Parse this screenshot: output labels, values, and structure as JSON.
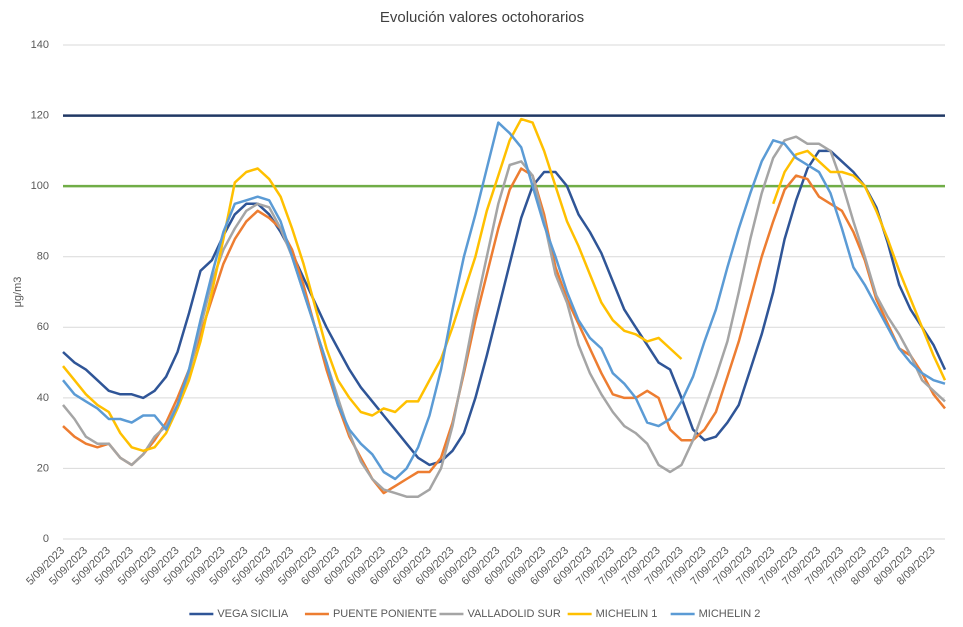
{
  "chart_data": {
    "type": "line",
    "title": "Evolución valores octohorarios",
    "y_label": "μg/m3",
    "categories": [
      "5/09/2023",
      null,
      "5/09/2023",
      null,
      "5/09/2023",
      null,
      "5/09/2023",
      null,
      "5/09/2023",
      null,
      "5/09/2023",
      null,
      "5/09/2023",
      null,
      "5/09/2023",
      null,
      "5/09/2023",
      null,
      "5/09/2023",
      null,
      "5/09/2023",
      null,
      "5/09/2023",
      null,
      "6/09/2023",
      null,
      "6/09/2023",
      null,
      "6/09/2023",
      null,
      "6/09/2023",
      null,
      "6/09/2023",
      null,
      "6/09/2023",
      null,
      "6/09/2023",
      null,
      "6/09/2023",
      null,
      "6/09/2023",
      null,
      "6/09/2023",
      null,
      "6/09/2023",
      null,
      "6/09/2023",
      null,
      "7/09/2023",
      null,
      "7/09/2023",
      null,
      "7/09/2023",
      null,
      "7/09/2023",
      null,
      "7/09/2023",
      null,
      "7/09/2023",
      null,
      "7/09/2023",
      null,
      "7/09/2023",
      null,
      "7/09/2023",
      null,
      "7/09/2023",
      null,
      "7/09/2023",
      null,
      "7/09/2023",
      null,
      "8/09/2023",
      null,
      "8/09/2023",
      null,
      "8/09/2023",
      null
    ],
    "series": [
      {
        "name": "VEGA SICILIA",
        "color": "#2f5597",
        "values": [
          53,
          50,
          48,
          45,
          42,
          41,
          41,
          40,
          42,
          46,
          53,
          64,
          76,
          79,
          86,
          92,
          95,
          95,
          92,
          87,
          81,
          74,
          67,
          60,
          54,
          48,
          43,
          39,
          35,
          31,
          27,
          23,
          21,
          22,
          25,
          30,
          40,
          52,
          65,
          78,
          91,
          100,
          104,
          104,
          100,
          92,
          87,
          81,
          73,
          65,
          60,
          55,
          50,
          48,
          40,
          31,
          28,
          29,
          33,
          38,
          48,
          58,
          70,
          85,
          96,
          105,
          110,
          110,
          107,
          104,
          100,
          94,
          84,
          72,
          65,
          60,
          55,
          48
        ]
      },
      {
        "name": "PUENTE PONIENTE",
        "color": "#ed7d31",
        "values": [
          32,
          29,
          27,
          26,
          27,
          23,
          21,
          24,
          28,
          33,
          40,
          48,
          58,
          68,
          78,
          85,
          90,
          93,
          91,
          88,
          82,
          72,
          60,
          48,
          38,
          29,
          23,
          17,
          13,
          15,
          17,
          19,
          19,
          23,
          33,
          47,
          62,
          75,
          88,
          99,
          105,
          103,
          92,
          77,
          68,
          61,
          54,
          47,
          41,
          40,
          40,
          42,
          40,
          31,
          28,
          28,
          31,
          36,
          46,
          56,
          68,
          80,
          90,
          99,
          103,
          102,
          97,
          95,
          93,
          87,
          79,
          68,
          61,
          54,
          52,
          47,
          41,
          37
        ]
      },
      {
        "name": "VALLADOLID SUR",
        "color": "#a5a5a5",
        "values": [
          38,
          34,
          29,
          27,
          27,
          23,
          21,
          24,
          29,
          32,
          38,
          47,
          60,
          73,
          82,
          88,
          93,
          95,
          94,
          88,
          80,
          70,
          60,
          50,
          40,
          30,
          22,
          17,
          14,
          13,
          12,
          12,
          14,
          20,
          32,
          48,
          65,
          80,
          95,
          106,
          107,
          103,
          90,
          75,
          67,
          55,
          47,
          41,
          36,
          32,
          30,
          27,
          21,
          19,
          21,
          28,
          37,
          46,
          56,
          70,
          85,
          98,
          108,
          113,
          114,
          112,
          112,
          110,
          101,
          90,
          80,
          69,
          63,
          58,
          52,
          45,
          42,
          39
        ]
      },
      {
        "name": "MICHELIN 1",
        "color": "#ffc000",
        "values": [
          49,
          45,
          41,
          38,
          36,
          30,
          26,
          25,
          26,
          30,
          37,
          45,
          56,
          70,
          85,
          101,
          104,
          105,
          102,
          97,
          88,
          78,
          66,
          54,
          45,
          40,
          36,
          35,
          37,
          36,
          39,
          39,
          45,
          51,
          60,
          70,
          80,
          93,
          103,
          113,
          119,
          118,
          110,
          100,
          90,
          83,
          75,
          67,
          62,
          59,
          58,
          56,
          57,
          54,
          51,
          null,
          null,
          null,
          null,
          null,
          null,
          null,
          95,
          104,
          109,
          110,
          107,
          104,
          104,
          103,
          100,
          93,
          85,
          76,
          68,
          60,
          52,
          45
        ]
      },
      {
        "name": "MICHELIN 2",
        "color": "#5b9bd5",
        "values": [
          45,
          41,
          39,
          37,
          34,
          34,
          33,
          35,
          35,
          31,
          38,
          48,
          62,
          75,
          87,
          95,
          96,
          97,
          96,
          90,
          80,
          70,
          60,
          50,
          38,
          31,
          27,
          24,
          19,
          17,
          20,
          26,
          35,
          48,
          65,
          80,
          92,
          105,
          118,
          115,
          111,
          100,
          89,
          80,
          70,
          62,
          57,
          54,
          47,
          44,
          40,
          33,
          32,
          34,
          39,
          46,
          56,
          65,
          77,
          88,
          98,
          107,
          113,
          112,
          108,
          106,
          104,
          98,
          88,
          77,
          72,
          66,
          60,
          54,
          50,
          47,
          45,
          44
        ]
      }
    ],
    "reference_lines": [
      {
        "value": 120,
        "color": "#203864"
      },
      {
        "value": 100,
        "color": "#70ad47"
      }
    ],
    "ylim": [
      0,
      140
    ],
    "yticks": [
      0,
      20,
      40,
      60,
      80,
      100,
      120,
      140
    ],
    "grid": true,
    "legend": "bottom"
  }
}
